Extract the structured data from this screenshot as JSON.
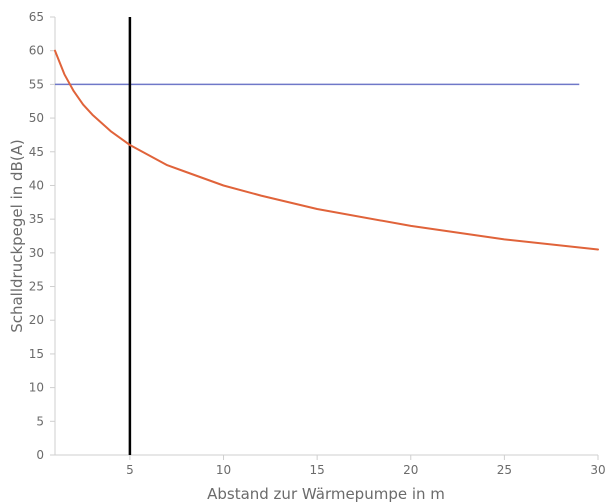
{
  "chart_data": {
    "type": "line",
    "xlabel": "Abstand zur Wärmepumpe in m",
    "ylabel": "Schalldruckpegel in dB(A)",
    "xlim": [
      1,
      30
    ],
    "ylim": [
      0,
      65
    ],
    "x_ticks": [
      "5",
      "10",
      "15",
      "20",
      "25",
      "30"
    ],
    "y_ticks": [
      "0",
      "5",
      "10",
      "15",
      "20",
      "25",
      "30",
      "35",
      "40",
      "45",
      "50",
      "55",
      "60",
      "65"
    ],
    "grid": false,
    "series": [
      {
        "color": "#e0633a",
        "x": [
          1,
          1.5,
          2,
          2.5,
          3,
          4,
          5,
          6,
          7,
          8,
          10,
          12,
          15,
          20,
          25,
          30
        ],
        "y": [
          60,
          56.5,
          54,
          52,
          50.5,
          48,
          46,
          44.5,
          43,
          42,
          40,
          38.5,
          36.5,
          34,
          32,
          30.5
        ]
      }
    ],
    "reference_lines": [
      {
        "orientation": "horizontal",
        "value": 55,
        "x_range": [
          1,
          29
        ],
        "color": "#6f78c8"
      },
      {
        "orientation": "vertical",
        "value": 5,
        "color": "#000000"
      }
    ]
  }
}
